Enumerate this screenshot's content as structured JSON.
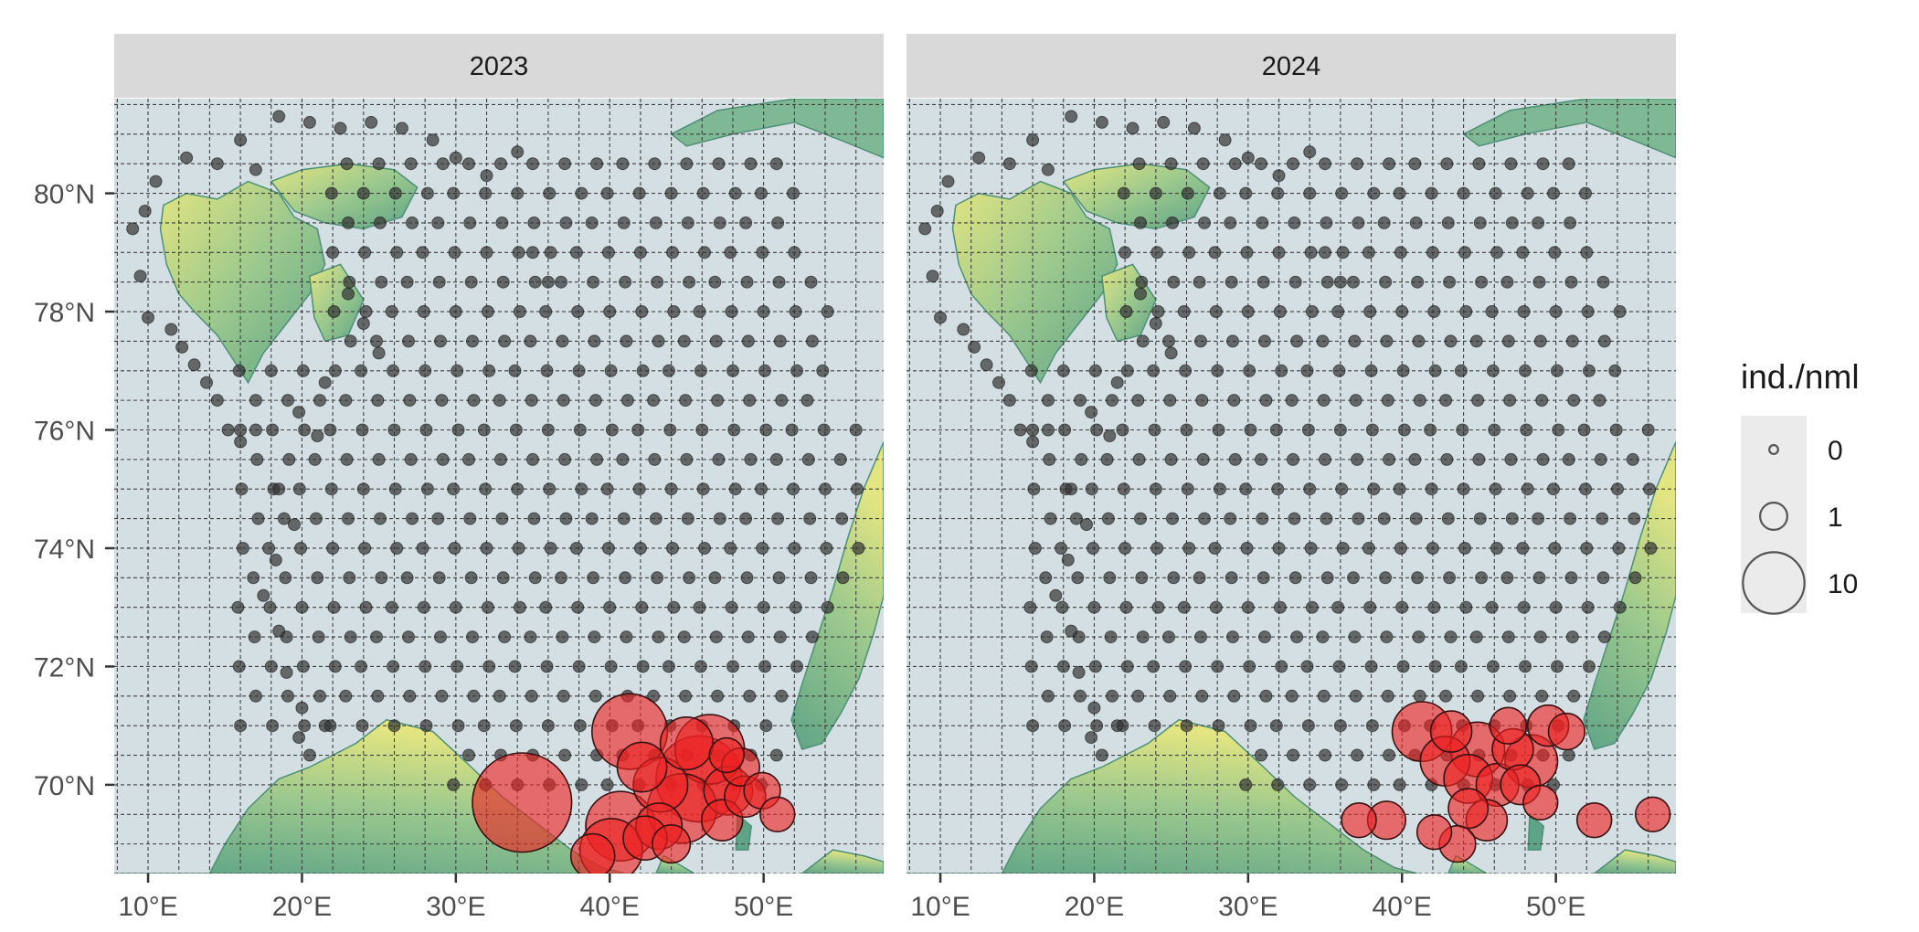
{
  "panels": [
    {
      "strip_label": "2023"
    },
    {
      "strip_label": "2024"
    }
  ],
  "axes": {
    "x_ticks": [
      "10°E",
      "20°E",
      "30°E",
      "40°E",
      "50°E"
    ],
    "x_tick_values": [
      10,
      20,
      30,
      40,
      50
    ],
    "y_ticks": [
      "70°N",
      "72°N",
      "74°N",
      "76°N",
      "78°N",
      "80°N"
    ],
    "y_tick_values": [
      70,
      72,
      74,
      76,
      78,
      80
    ],
    "lon_range": [
      7.8,
      57.8
    ],
    "lat_range": [
      68.5,
      81.6
    ]
  },
  "legend": {
    "title": "ind./nml",
    "entries": [
      {
        "label": "0",
        "value": 0
      },
      {
        "label": "1",
        "value": 1
      },
      {
        "label": "10",
        "value": 10
      }
    ]
  },
  "colors": {
    "sea": "#d4dfe3",
    "land_low": "#5fa487",
    "land_mid": "#9cc98e",
    "land_high": "#e3e581",
    "zero_catch": "#333333",
    "positive_catch": "#ee2222",
    "strip": "#d9d9d9",
    "legend_key_bg": "#ebebeb"
  },
  "map_data": {
    "type": "bubble-map",
    "size_variable": "ind./nml",
    "stations_2023_positive": [
      {
        "lon": 34.3,
        "lat": 69.7,
        "v": 10
      },
      {
        "lon": 41.3,
        "lat": 70.9,
        "v": 5
      },
      {
        "lon": 40.7,
        "lat": 69.3,
        "v": 4
      },
      {
        "lon": 40.1,
        "lat": 68.9,
        "v": 3
      },
      {
        "lon": 45.8,
        "lat": 70.1,
        "v": 7
      },
      {
        "lon": 46.5,
        "lat": 70.6,
        "v": 4
      },
      {
        "lon": 44.7,
        "lat": 69.6,
        "v": 4
      },
      {
        "lon": 43.3,
        "lat": 70.0,
        "v": 2
      },
      {
        "lon": 42.1,
        "lat": 70.3,
        "v": 1.5
      },
      {
        "lon": 45.0,
        "lat": 70.7,
        "v": 1.8
      },
      {
        "lon": 43.2,
        "lat": 69.3,
        "v": 1.2
      },
      {
        "lon": 42.3,
        "lat": 69.1,
        "v": 1
      },
      {
        "lon": 38.9,
        "lat": 68.8,
        "v": 1
      },
      {
        "lon": 47.3,
        "lat": 69.4,
        "v": 0.8
      },
      {
        "lon": 47.7,
        "lat": 69.9,
        "v": 1.4
      },
      {
        "lon": 48.8,
        "lat": 69.8,
        "v": 0.8
      },
      {
        "lon": 48.5,
        "lat": 70.3,
        "v": 0.6
      },
      {
        "lon": 49.9,
        "lat": 69.9,
        "v": 0.5
      },
      {
        "lon": 50.9,
        "lat": 69.5,
        "v": 0.4
      },
      {
        "lon": 47.6,
        "lat": 70.5,
        "v": 0.4
      },
      {
        "lon": 44.0,
        "lat": 69.0,
        "v": 0.6
      }
    ],
    "stations_2024_positive": [
      {
        "lon": 41.3,
        "lat": 70.9,
        "v": 2.6
      },
      {
        "lon": 42.8,
        "lat": 70.4,
        "v": 1.5
      },
      {
        "lon": 44.3,
        "lat": 70.1,
        "v": 1.4
      },
      {
        "lon": 44.9,
        "lat": 70.6,
        "v": 2.0
      },
      {
        "lon": 43.2,
        "lat": 70.9,
        "v": 0.8
      },
      {
        "lon": 46.2,
        "lat": 70.0,
        "v": 0.9
      },
      {
        "lon": 47.2,
        "lat": 70.6,
        "v": 0.8
      },
      {
        "lon": 48.4,
        "lat": 70.4,
        "v": 1.8
      },
      {
        "lon": 47.7,
        "lat": 70.0,
        "v": 0.7
      },
      {
        "lon": 49.5,
        "lat": 71.0,
        "v": 0.8
      },
      {
        "lon": 50.7,
        "lat": 70.9,
        "v": 0.5
      },
      {
        "lon": 46.9,
        "lat": 71.0,
        "v": 0.5
      },
      {
        "lon": 44.3,
        "lat": 69.6,
        "v": 0.7
      },
      {
        "lon": 45.5,
        "lat": 69.4,
        "v": 0.8
      },
      {
        "lon": 49.0,
        "lat": 69.7,
        "v": 0.4
      },
      {
        "lon": 37.2,
        "lat": 69.4,
        "v": 0.4
      },
      {
        "lon": 39.0,
        "lat": 69.4,
        "v": 0.6
      },
      {
        "lon": 42.1,
        "lat": 69.2,
        "v": 0.4
      },
      {
        "lon": 43.6,
        "lat": 69.0,
        "v": 0.5
      },
      {
        "lon": 52.5,
        "lat": 69.4,
        "v": 0.4
      },
      {
        "lon": 56.3,
        "lat": 69.5,
        "v": 0.4
      }
    ]
  }
}
